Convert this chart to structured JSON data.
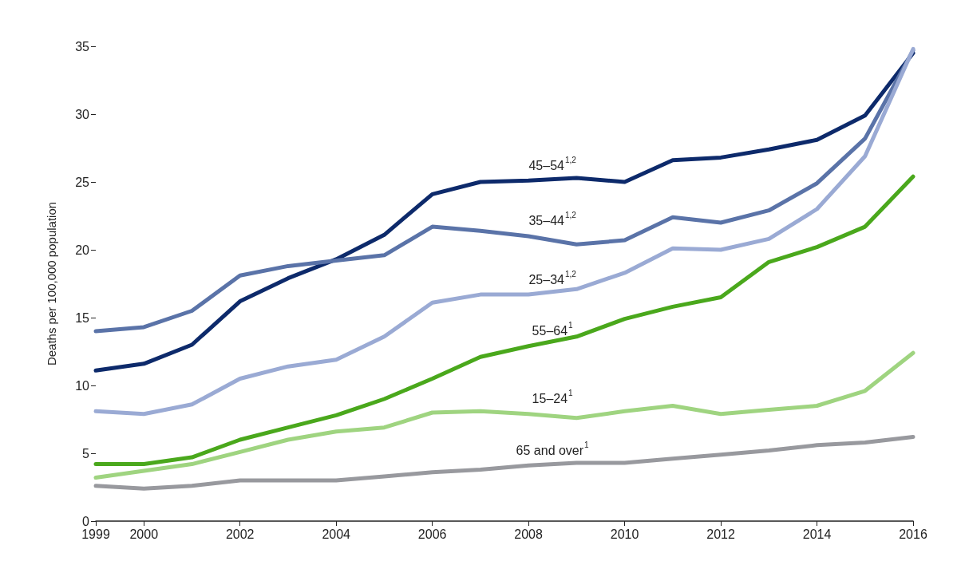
{
  "chart_data": {
    "type": "line",
    "ylabel": "Deaths per 100,000 population",
    "x": [
      1999,
      2000,
      2001,
      2002,
      2003,
      2004,
      2005,
      2006,
      2007,
      2008,
      2009,
      2010,
      2011,
      2012,
      2013,
      2014,
      2015,
      2016
    ],
    "xlim": [
      1999,
      2016
    ],
    "xticks": [
      1999,
      2000,
      2002,
      2004,
      2006,
      2008,
      2010,
      2012,
      2014,
      2016
    ],
    "ylim": [
      0,
      35
    ],
    "yticks": [
      0,
      5,
      10,
      15,
      20,
      25,
      30,
      35
    ],
    "grid": false,
    "marker": "none",
    "line_style": "solid",
    "series": [
      {
        "name": "45–54$^{1,2}$",
        "color": "#0d2a6b",
        "values": [
          11.1,
          11.6,
          13.0,
          16.2,
          17.9,
          19.3,
          21.1,
          24.1,
          25.0,
          25.1,
          25.3,
          25.0,
          26.6,
          26.8,
          27.4,
          28.1,
          29.9,
          34.5
        ]
      },
      {
        "name": "35–44$^{1,2}$",
        "color": "#5a73a8",
        "values": [
          14.0,
          14.3,
          15.5,
          18.1,
          18.8,
          19.2,
          19.6,
          21.7,
          21.4,
          21.0,
          20.4,
          20.7,
          22.4,
          22.0,
          22.9,
          24.9,
          28.2,
          34.7
        ]
      },
      {
        "name": "25–34$^{1,2}$",
        "color": "#9aaad4",
        "values": [
          8.1,
          7.9,
          8.6,
          10.5,
          11.4,
          11.9,
          13.6,
          16.1,
          16.7,
          16.7,
          17.1,
          18.3,
          20.1,
          20.0,
          20.8,
          23.0,
          26.9,
          34.8
        ]
      },
      {
        "name": "55–64$^{1}$",
        "color": "#4aa81c",
        "values": [
          4.2,
          4.2,
          4.7,
          6.0,
          6.9,
          7.8,
          9.0,
          10.5,
          12.1,
          12.9,
          13.6,
          14.9,
          15.8,
          16.5,
          19.1,
          20.2,
          21.7,
          25.4
        ]
      },
      {
        "name": "15–24$^{1}$",
        "color": "#9fd480",
        "values": [
          3.2,
          3.7,
          4.2,
          5.1,
          6.0,
          6.6,
          6.9,
          8.0,
          8.1,
          7.9,
          7.6,
          8.1,
          8.5,
          7.9,
          8.2,
          8.5,
          9.6,
          12.4
        ]
      },
      {
        "name": "65 and over$^{1}$",
        "color": "#98999e",
        "values": [
          2.6,
          2.4,
          2.6,
          3.0,
          3.0,
          3.0,
          3.3,
          3.6,
          3.8,
          4.1,
          4.3,
          4.3,
          4.6,
          4.9,
          5.2,
          5.6,
          5.8,
          6.2
        ]
      }
    ]
  }
}
